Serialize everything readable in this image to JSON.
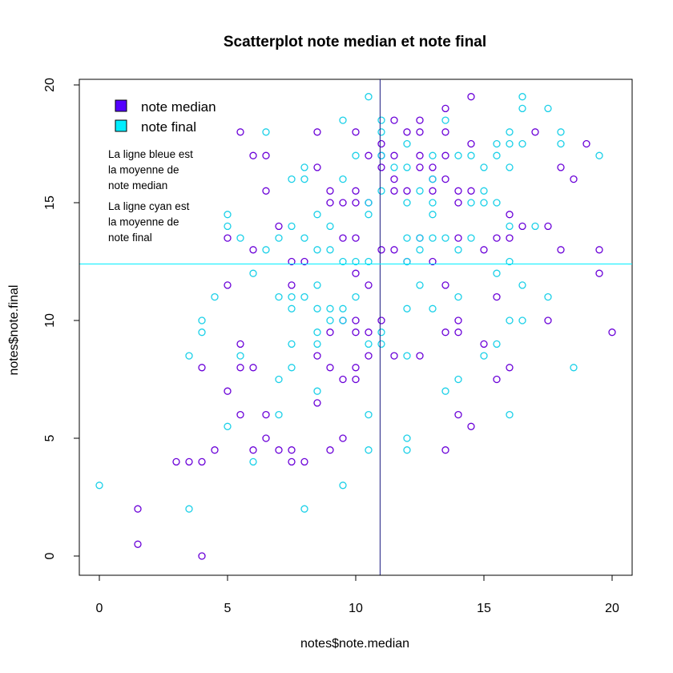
{
  "chart_data": {
    "type": "scatter",
    "title": "Scatterplot note median et note final",
    "xlabel": "notes$note.median",
    "ylabel": "notes$note.final",
    "xlim": [
      0,
      20
    ],
    "ylim": [
      0,
      20
    ],
    "xticks": [
      "0",
      "5",
      "10",
      "15",
      "20"
    ],
    "yticks": [
      "0",
      "5",
      "10",
      "15",
      "20"
    ],
    "legend": {
      "position": "top-left",
      "entries": [
        {
          "label": "note median",
          "color": "#5500ff"
        },
        {
          "label": "note final",
          "color": "#00eeff"
        }
      ]
    },
    "annotations": [
      [
        "La ligne bleue est",
        "la moyenne de",
        "note median"
      ],
      [
        "La ligne cyan est",
        "la moyenne de",
        "note final"
      ]
    ],
    "reference_lines": [
      {
        "orientation": "vertical",
        "value": 10.95,
        "color": "#1a1a80"
      },
      {
        "orientation": "horizontal",
        "value": 12.4,
        "color": "#00eeff"
      }
    ],
    "series": [
      {
        "name": "note median",
        "color": "#6a00d8",
        "points": [
          [
            1.5,
            2
          ],
          [
            1.5,
            0.5
          ],
          [
            3,
            4
          ],
          [
            3.5,
            4
          ],
          [
            4,
            4
          ],
          [
            4,
            8
          ],
          [
            4,
            0
          ],
          [
            4.5,
            4.5
          ],
          [
            5,
            7
          ],
          [
            5,
            13.5
          ],
          [
            5,
            11.5
          ],
          [
            5.5,
            18
          ],
          [
            5.5,
            9
          ],
          [
            5.5,
            8
          ],
          [
            5.5,
            6
          ],
          [
            6,
            17
          ],
          [
            6,
            13
          ],
          [
            6,
            8
          ],
          [
            6,
            4.5
          ],
          [
            6.5,
            17
          ],
          [
            6.5,
            15.5
          ],
          [
            6.5,
            6
          ],
          [
            6.5,
            5
          ],
          [
            7,
            14
          ],
          [
            7,
            4.5
          ],
          [
            7.5,
            12.5
          ],
          [
            7.5,
            11.5
          ],
          [
            7.5,
            4.5
          ],
          [
            7.5,
            4
          ],
          [
            8,
            12.5
          ],
          [
            8,
            4
          ],
          [
            8.5,
            18
          ],
          [
            8.5,
            16.5
          ],
          [
            8.5,
            8.5
          ],
          [
            8.5,
            6.5
          ],
          [
            9,
            15.5
          ],
          [
            9,
            15
          ],
          [
            9,
            9.5
          ],
          [
            9,
            8
          ],
          [
            9,
            4.5
          ],
          [
            9.5,
            15
          ],
          [
            9.5,
            13.5
          ],
          [
            9.5,
            10
          ],
          [
            9.5,
            7.5
          ],
          [
            9.5,
            5
          ],
          [
            10,
            18
          ],
          [
            10,
            15.5
          ],
          [
            10,
            15
          ],
          [
            10,
            13.5
          ],
          [
            10,
            12
          ],
          [
            10,
            10
          ],
          [
            10,
            9.5
          ],
          [
            10,
            8
          ],
          [
            10,
            7.5
          ],
          [
            10.5,
            17
          ],
          [
            10.5,
            15
          ],
          [
            10.5,
            11.5
          ],
          [
            10.5,
            9.5
          ],
          [
            10.5,
            8.5
          ],
          [
            11,
            17.5
          ],
          [
            11,
            17
          ],
          [
            11,
            16.5
          ],
          [
            11,
            13
          ],
          [
            11,
            10
          ],
          [
            11.5,
            18.5
          ],
          [
            11.5,
            17
          ],
          [
            11.5,
            16
          ],
          [
            11.5,
            15.5
          ],
          [
            11.5,
            13
          ],
          [
            11.5,
            8.5
          ],
          [
            12,
            18
          ],
          [
            12,
            15.5
          ],
          [
            12,
            12.5
          ],
          [
            12.5,
            18.5
          ],
          [
            12.5,
            18
          ],
          [
            12.5,
            17
          ],
          [
            12.5,
            16.5
          ],
          [
            12.5,
            13.5
          ],
          [
            12.5,
            8.5
          ],
          [
            13,
            16.5
          ],
          [
            13,
            16
          ],
          [
            13,
            15.5
          ],
          [
            13,
            12.5
          ],
          [
            13.5,
            19
          ],
          [
            13.5,
            18
          ],
          [
            13.5,
            17
          ],
          [
            13.5,
            16
          ],
          [
            13.5,
            11.5
          ],
          [
            13.5,
            9.5
          ],
          [
            13.5,
            4.5
          ],
          [
            14,
            15.5
          ],
          [
            14,
            15
          ],
          [
            14,
            13.5
          ],
          [
            14,
            10
          ],
          [
            14,
            9.5
          ],
          [
            14,
            6
          ],
          [
            14.5,
            19.5
          ],
          [
            14.5,
            17.5
          ],
          [
            14.5,
            15.5
          ],
          [
            14.5,
            5.5
          ],
          [
            15,
            13
          ],
          [
            15,
            9
          ],
          [
            15.5,
            13.5
          ],
          [
            15.5,
            11
          ],
          [
            15.5,
            7.5
          ],
          [
            16,
            14.5
          ],
          [
            16,
            13.5
          ],
          [
            16,
            8
          ],
          [
            16.5,
            14
          ],
          [
            17,
            18
          ],
          [
            17.5,
            14
          ],
          [
            17.5,
            10
          ],
          [
            18,
            16.5
          ],
          [
            18,
            13
          ],
          [
            18.5,
            16
          ],
          [
            19,
            17.5
          ],
          [
            19.5,
            13
          ],
          [
            19.5,
            12
          ],
          [
            20,
            9.5
          ]
        ]
      },
      {
        "name": "note final",
        "color": "#1ad0e8",
        "points": [
          [
            0,
            3
          ],
          [
            3.5,
            8.5
          ],
          [
            3.5,
            2
          ],
          [
            4,
            10
          ],
          [
            4,
            9.5
          ],
          [
            4.5,
            11
          ],
          [
            5,
            14.5
          ],
          [
            5,
            14
          ],
          [
            5,
            5.5
          ],
          [
            5.5,
            13.5
          ],
          [
            5.5,
            8.5
          ],
          [
            6,
            12
          ],
          [
            6,
            4
          ],
          [
            6.5,
            18
          ],
          [
            6.5,
            13
          ],
          [
            7,
            13.5
          ],
          [
            7,
            11
          ],
          [
            7,
            7.5
          ],
          [
            7,
            6
          ],
          [
            7.5,
            16
          ],
          [
            7.5,
            14
          ],
          [
            7.5,
            11
          ],
          [
            7.5,
            10.5
          ],
          [
            7.5,
            9
          ],
          [
            7.5,
            8
          ],
          [
            8,
            16.5
          ],
          [
            8,
            16
          ],
          [
            8,
            13.5
          ],
          [
            8,
            11
          ],
          [
            8,
            2
          ],
          [
            8.5,
            14.5
          ],
          [
            8.5,
            13
          ],
          [
            8.5,
            11.5
          ],
          [
            8.5,
            10.5
          ],
          [
            8.5,
            9.5
          ],
          [
            8.5,
            9
          ],
          [
            8.5,
            7
          ],
          [
            9,
            14
          ],
          [
            9,
            13
          ],
          [
            9,
            10.5
          ],
          [
            9,
            10
          ],
          [
            9.5,
            18.5
          ],
          [
            9.5,
            16
          ],
          [
            9.5,
            12.5
          ],
          [
            9.5,
            10.5
          ],
          [
            9.5,
            10
          ],
          [
            9.5,
            3
          ],
          [
            10,
            17
          ],
          [
            10,
            12.5
          ],
          [
            10,
            11
          ],
          [
            10.5,
            19.5
          ],
          [
            10.5,
            15
          ],
          [
            10.5,
            14.5
          ],
          [
            10.5,
            12.5
          ],
          [
            10.5,
            9
          ],
          [
            10.5,
            6
          ],
          [
            10.5,
            4.5
          ],
          [
            11,
            18.5
          ],
          [
            11,
            18
          ],
          [
            11,
            17
          ],
          [
            11,
            15.5
          ],
          [
            11,
            9.5
          ],
          [
            11,
            9
          ],
          [
            11.5,
            16.5
          ],
          [
            12,
            17.5
          ],
          [
            12,
            16.5
          ],
          [
            12,
            15
          ],
          [
            12,
            13.5
          ],
          [
            12,
            12.5
          ],
          [
            12,
            10.5
          ],
          [
            12,
            8.5
          ],
          [
            12,
            5
          ],
          [
            12,
            4.5
          ],
          [
            12.5,
            15.5
          ],
          [
            12.5,
            13.5
          ],
          [
            12.5,
            13
          ],
          [
            12.5,
            11.5
          ],
          [
            13,
            17
          ],
          [
            13,
            16
          ],
          [
            13,
            15
          ],
          [
            13,
            14.5
          ],
          [
            13,
            13.5
          ],
          [
            13,
            10.5
          ],
          [
            13.5,
            18.5
          ],
          [
            13.5,
            13.5
          ],
          [
            13.5,
            7
          ],
          [
            14,
            17
          ],
          [
            14,
            13
          ],
          [
            14,
            11
          ],
          [
            14,
            7.5
          ],
          [
            14.5,
            17
          ],
          [
            14.5,
            15
          ],
          [
            14.5,
            13.5
          ],
          [
            15,
            16.5
          ],
          [
            15,
            15.5
          ],
          [
            15,
            15
          ],
          [
            15,
            8.5
          ],
          [
            15.5,
            17.5
          ],
          [
            15.5,
            17
          ],
          [
            15.5,
            15
          ],
          [
            15.5,
            12
          ],
          [
            15.5,
            9
          ],
          [
            16,
            18
          ],
          [
            16,
            17.5
          ],
          [
            16,
            16.5
          ],
          [
            16,
            14
          ],
          [
            16,
            12.5
          ],
          [
            16,
            10
          ],
          [
            16,
            6
          ],
          [
            16.5,
            19.5
          ],
          [
            16.5,
            19
          ],
          [
            16.5,
            17.5
          ],
          [
            16.5,
            11.5
          ],
          [
            16.5,
            10
          ],
          [
            17,
            14
          ],
          [
            17.5,
            19
          ],
          [
            17.5,
            11
          ],
          [
            18,
            18
          ],
          [
            18,
            17.5
          ],
          [
            18.5,
            8
          ],
          [
            19.5,
            17
          ]
        ]
      }
    ]
  }
}
